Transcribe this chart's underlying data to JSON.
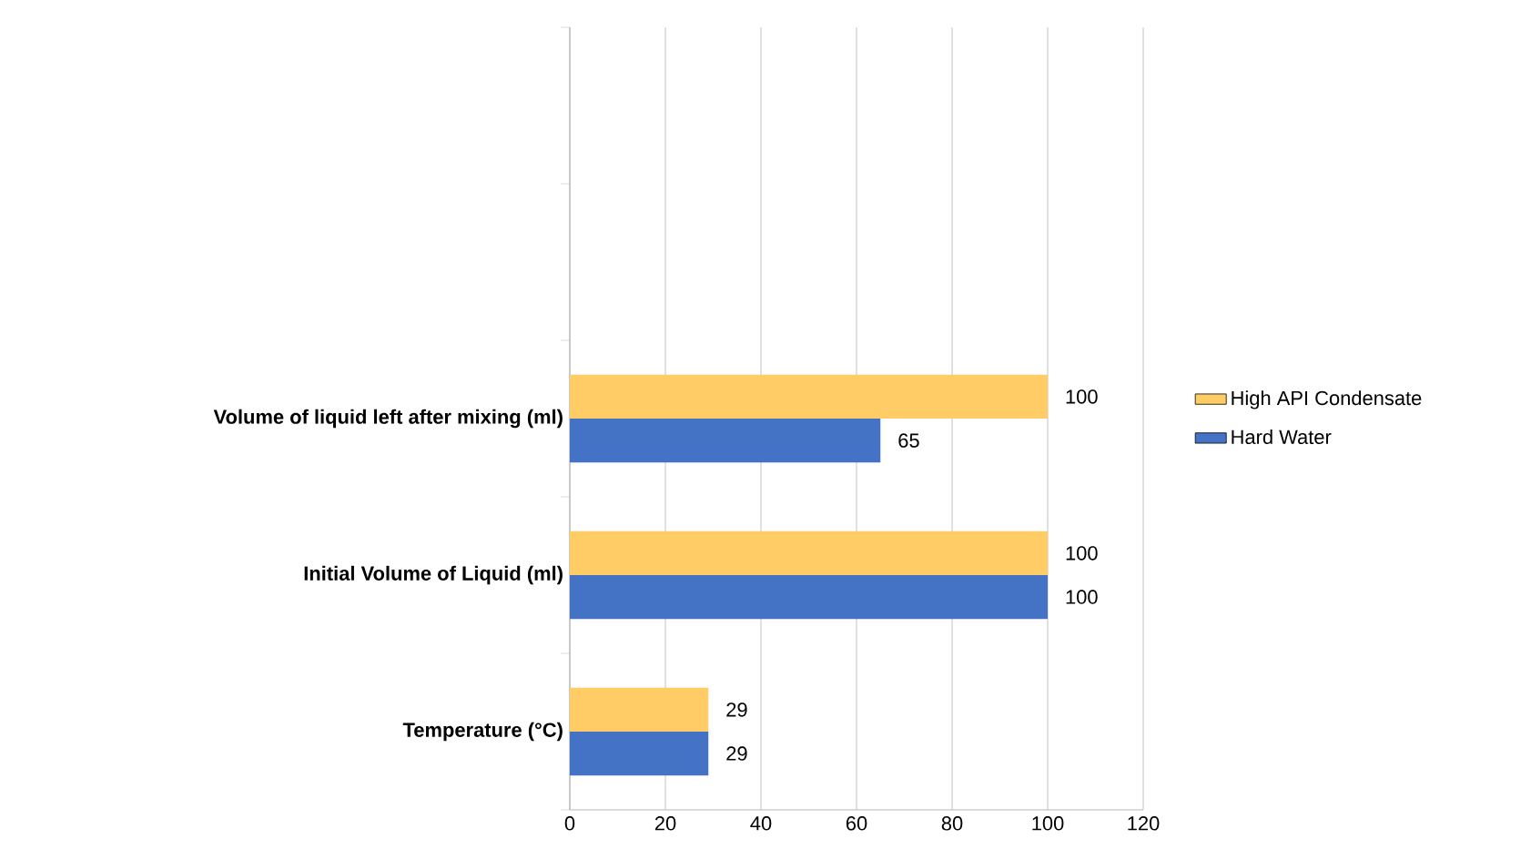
{
  "chart_data": {
    "type": "bar",
    "orientation": "horizontal",
    "categories": [
      null,
      null,
      "Volume of liquid left after mixing (ml)",
      "Initial Volume of Liquid (ml)",
      "Temperature (°C)"
    ],
    "series": [
      {
        "name": "High API Condensate",
        "color": "#ffcc66",
        "values": [
          null,
          null,
          100,
          100,
          29
        ]
      },
      {
        "name": "Hard Water",
        "color": "#4472c4",
        "values": [
          null,
          null,
          65,
          100,
          29
        ]
      }
    ],
    "xlim": [
      0,
      120
    ],
    "xticks": [
      0,
      20,
      40,
      60,
      80,
      100,
      120
    ],
    "grid": "x",
    "legend": "right",
    "data_labels": true
  }
}
